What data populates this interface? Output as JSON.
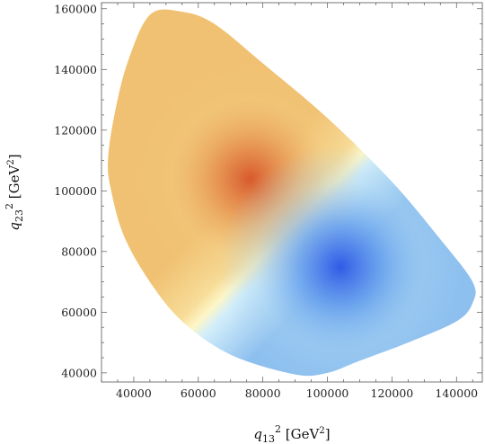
{
  "chart_data": {
    "type": "heatmap",
    "subtype": "dalitz-plot density",
    "x_axis": {
      "symbol": "q",
      "subscript": "13",
      "power": "2",
      "unit_open": "[GeV",
      "unit_power": "2",
      "unit_close": "]",
      "range": [
        30000,
        148000
      ],
      "ticks": [
        40000,
        60000,
        80000,
        100000,
        120000,
        140000
      ],
      "tick_labels": [
        "40000",
        "60000",
        "80000",
        "100000",
        "120000",
        "140000"
      ]
    },
    "y_axis": {
      "symbol": "q",
      "subscript": "23",
      "power": "2",
      "unit_open": "[GeV",
      "unit_power": "2",
      "unit_close": "]",
      "range": [
        37000,
        162000
      ],
      "ticks": [
        40000,
        60000,
        80000,
        100000,
        120000,
        140000,
        160000
      ],
      "tick_labels": [
        "40000",
        "60000",
        "80000",
        "100000",
        "120000",
        "140000",
        "160000"
      ]
    },
    "colors": {
      "positive_peak": "#d85a2e",
      "positive_mid": "#f2c87c",
      "zero": "#fdf6c8",
      "negative_mid": "#a8d4f2",
      "negative_peak": "#2f5be6"
    },
    "boundary": [
      [
        45000,
        158000
      ],
      [
        55000,
        159000
      ],
      [
        65000,
        155000
      ],
      [
        80000,
        142000
      ],
      [
        100000,
        124000
      ],
      [
        120000,
        103000
      ],
      [
        135000,
        84000
      ],
      [
        145000,
        70000
      ],
      [
        145000,
        63000
      ],
      [
        140000,
        57000
      ],
      [
        125000,
        50000
      ],
      [
        110000,
        44000
      ],
      [
        100000,
        40000
      ],
      [
        90000,
        39500
      ],
      [
        70000,
        46000
      ],
      [
        55000,
        57000
      ],
      [
        45000,
        70000
      ],
      [
        37000,
        85000
      ],
      [
        33000,
        100000
      ],
      [
        32000,
        110000
      ],
      [
        34000,
        125000
      ],
      [
        38000,
        142000
      ]
    ],
    "peaks": [
      {
        "sign": "positive",
        "x": 76000,
        "y": 104000,
        "amplitude": 1.0
      },
      {
        "sign": "negative",
        "x": 104000,
        "y": 75000,
        "amplitude": 1.0
      }
    ],
    "grid": false,
    "legend": "none"
  }
}
